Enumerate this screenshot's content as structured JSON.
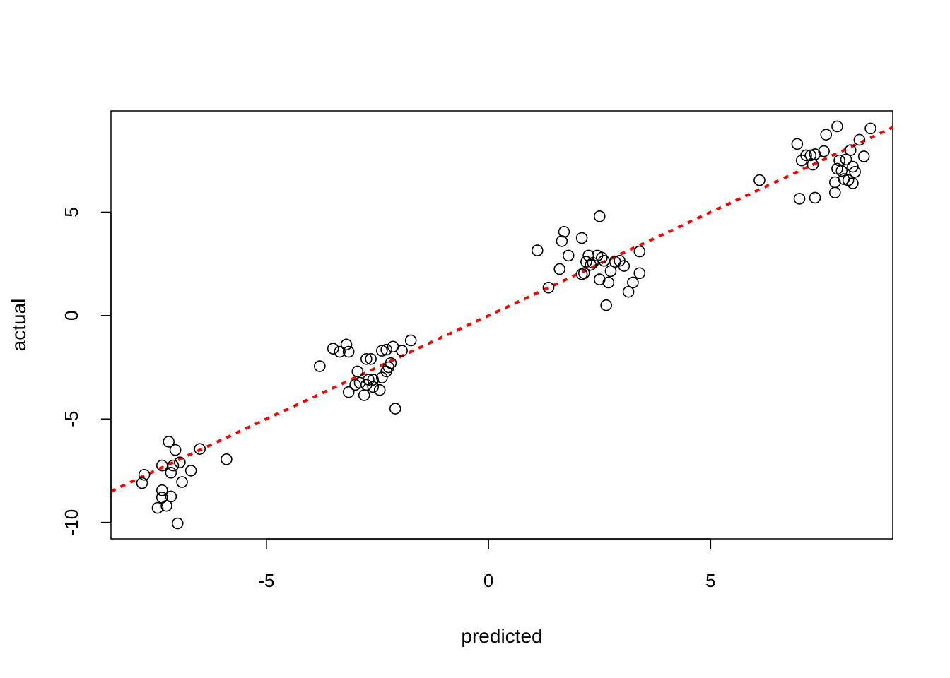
{
  "chart_data": {
    "type": "scatter",
    "title": "",
    "xlabel": "predicted",
    "ylabel": "actual",
    "xlim": [
      -8.5,
      9.1
    ],
    "ylim": [
      -10.8,
      9.9
    ],
    "x_ticks": [
      -5,
      0,
      5
    ],
    "x_tick_labels": [
      "-5",
      "0",
      "5"
    ],
    "y_ticks": [
      -10,
      -5,
      0,
      5
    ],
    "y_tick_labels": [
      "-10",
      "-5",
      "0",
      "5"
    ],
    "grid": false,
    "legend": "none",
    "reference_line": {
      "slope": 1,
      "intercept": 0,
      "color": "#ff0000",
      "style": "dotted"
    },
    "series": [
      {
        "marker": "open-circle",
        "color": "#000000",
        "points": [
          [
            -7.8,
            -8.1
          ],
          [
            -7.75,
            -7.7
          ],
          [
            -7.45,
            -9.3
          ],
          [
            -7.35,
            -8.8
          ],
          [
            -7.35,
            -8.45
          ],
          [
            -7.35,
            -7.25
          ],
          [
            -7.25,
            -9.2
          ],
          [
            -7.2,
            -6.1
          ],
          [
            -7.15,
            -7.6
          ],
          [
            -7.15,
            -8.75
          ],
          [
            -7.1,
            -7.25
          ],
          [
            -7.05,
            -6.5
          ],
          [
            -7.0,
            -10.05
          ],
          [
            -6.95,
            -7.1
          ],
          [
            -6.9,
            -8.05
          ],
          [
            -6.7,
            -7.5
          ],
          [
            -6.5,
            -6.45
          ],
          [
            -5.9,
            -6.95
          ],
          [
            -3.8,
            -2.45
          ],
          [
            -3.5,
            -1.6
          ],
          [
            -3.35,
            -1.75
          ],
          [
            -3.2,
            -1.4
          ],
          [
            -3.15,
            -3.7
          ],
          [
            -3.15,
            -1.75
          ],
          [
            -3.0,
            -3.35
          ],
          [
            -2.95,
            -2.7
          ],
          [
            -2.9,
            -3.25
          ],
          [
            -2.8,
            -3.85
          ],
          [
            -2.75,
            -2.1
          ],
          [
            -2.75,
            -3.35
          ],
          [
            -2.7,
            -3.1
          ],
          [
            -2.65,
            -2.1
          ],
          [
            -2.6,
            -3.45
          ],
          [
            -2.6,
            -3.1
          ],
          [
            -2.45,
            -3.6
          ],
          [
            -2.4,
            -3.0
          ],
          [
            -2.4,
            -1.7
          ],
          [
            -2.3,
            -2.7
          ],
          [
            -2.3,
            -1.65
          ],
          [
            -2.25,
            -2.5
          ],
          [
            -2.2,
            -2.3
          ],
          [
            -2.15,
            -1.5
          ],
          [
            -2.1,
            -4.5
          ],
          [
            -1.95,
            -1.7
          ],
          [
            -1.75,
            -1.2
          ],
          [
            1.1,
            3.15
          ],
          [
            1.35,
            1.35
          ],
          [
            1.6,
            2.25
          ],
          [
            1.65,
            3.6
          ],
          [
            1.7,
            4.05
          ],
          [
            1.8,
            2.9
          ],
          [
            2.1,
            3.75
          ],
          [
            2.1,
            2.0
          ],
          [
            2.15,
            2.05
          ],
          [
            2.2,
            2.6
          ],
          [
            2.25,
            2.9
          ],
          [
            2.3,
            2.45
          ],
          [
            2.35,
            2.55
          ],
          [
            2.45,
            2.9
          ],
          [
            2.5,
            1.75
          ],
          [
            2.5,
            4.8
          ],
          [
            2.55,
            2.8
          ],
          [
            2.6,
            2.65
          ],
          [
            2.65,
            0.5
          ],
          [
            2.7,
            1.6
          ],
          [
            2.75,
            2.15
          ],
          [
            2.85,
            2.6
          ],
          [
            2.95,
            2.65
          ],
          [
            3.05,
            2.4
          ],
          [
            3.15,
            1.15
          ],
          [
            3.25,
            1.6
          ],
          [
            3.4,
            2.05
          ],
          [
            3.4,
            3.1
          ],
          [
            6.1,
            6.55
          ],
          [
            6.95,
            8.3
          ],
          [
            7.0,
            5.65
          ],
          [
            7.05,
            7.5
          ],
          [
            7.15,
            7.75
          ],
          [
            7.25,
            7.75
          ],
          [
            7.3,
            7.3
          ],
          [
            7.35,
            7.8
          ],
          [
            7.35,
            5.7
          ],
          [
            7.55,
            7.95
          ],
          [
            7.6,
            8.75
          ],
          [
            7.8,
            6.45
          ],
          [
            7.8,
            5.95
          ],
          [
            7.85,
            9.15
          ],
          [
            7.85,
            7.1
          ],
          [
            7.9,
            7.5
          ],
          [
            7.95,
            7.0
          ],
          [
            8.0,
            6.6
          ],
          [
            8.05,
            7.55
          ],
          [
            8.1,
            6.55
          ],
          [
            8.15,
            8.0
          ],
          [
            8.2,
            6.4
          ],
          [
            8.2,
            7.2
          ],
          [
            8.25,
            6.95
          ],
          [
            8.35,
            8.5
          ],
          [
            8.45,
            7.7
          ],
          [
            8.6,
            9.05
          ]
        ]
      }
    ]
  }
}
